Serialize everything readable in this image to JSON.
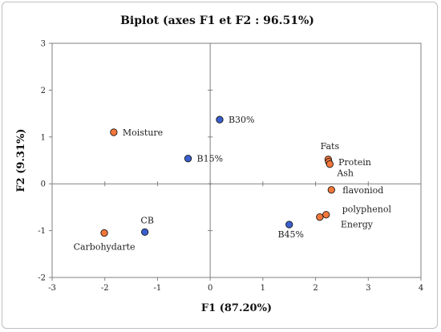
{
  "chart_data": {
    "type": "scatter",
    "title": "Biplot (axes F1 et F2 : 96.51%)",
    "xlabel": "F1 (87.20%)",
    "ylabel": "F2 (9.31%)",
    "xlim": [
      -3,
      4
    ],
    "ylim": [
      -2,
      3
    ],
    "xticks": [
      "-3",
      "-2",
      "-1",
      "0",
      "1",
      "2",
      "3",
      "4"
    ],
    "yticks": [
      "-2",
      "-1",
      "0",
      "1",
      "2",
      "3"
    ],
    "grid": false,
    "series": [
      {
        "color": "#3a5fcd",
        "points": [
          {
            "label": "B30%",
            "x": 0.18,
            "y": 1.37
          },
          {
            "label": "B15%",
            "x": -0.42,
            "y": 0.54
          },
          {
            "label": "CB",
            "x": -1.24,
            "y": -1.03
          },
          {
            "label": "B45%",
            "x": 1.5,
            "y": -0.87
          }
        ]
      },
      {
        "color": "#f4773a",
        "points": [
          {
            "label": "Moisture",
            "x": -1.83,
            "y": 1.1
          },
          {
            "label": "Carbohydarte",
            "x": -2.01,
            "y": -1.05
          },
          {
            "label": "Fats",
            "x": 2.24,
            "y": 0.52
          },
          {
            "label": "Protein",
            "x": 2.25,
            "y": 0.47
          },
          {
            "label": "Ash",
            "x": 2.27,
            "y": 0.42
          },
          {
            "label": "flavoniod",
            "x": 2.3,
            "y": -0.13
          },
          {
            "label": "polyphenol",
            "x": 2.2,
            "y": -0.66
          },
          {
            "label": "Energy",
            "x": 2.08,
            "y": -0.71
          }
        ]
      }
    ]
  }
}
